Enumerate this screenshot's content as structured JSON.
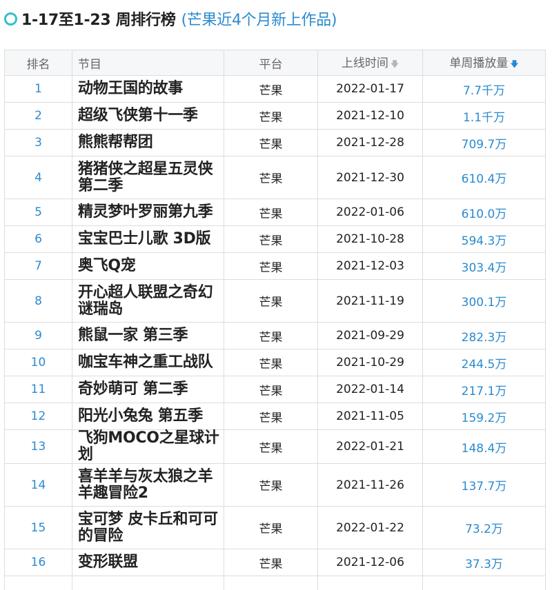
{
  "header": {
    "title": "1-17至1-23 周排行榜",
    "subtitle": "(芒果近4个月新上作品)"
  },
  "table": {
    "columns": {
      "rank": "排名",
      "title": "节目",
      "platform": "平台",
      "release": "上线时间",
      "plays": "单周播放量"
    },
    "sort_icons": {
      "release": "arrow-down-gray-icon",
      "plays": "arrow-down-blue-icon"
    },
    "rows": [
      {
        "rank": "1",
        "title": "动物王国的故事",
        "platform": "芒果",
        "release": "2022-01-17",
        "plays": "7.7千万"
      },
      {
        "rank": "2",
        "title": "超级飞侠第十一季",
        "platform": "芒果",
        "release": "2021-12-10",
        "plays": "1.1千万"
      },
      {
        "rank": "3",
        "title": "熊熊帮帮团",
        "platform": "芒果",
        "release": "2021-12-28",
        "plays": "709.7万"
      },
      {
        "rank": "4",
        "title": "猪猪侠之超星五灵侠 第二季",
        "platform": "芒果",
        "release": "2021-12-30",
        "plays": "610.4万"
      },
      {
        "rank": "5",
        "title": "精灵梦叶罗丽第九季",
        "platform": "芒果",
        "release": "2022-01-06",
        "plays": "610.0万"
      },
      {
        "rank": "6",
        "title": "宝宝巴士儿歌 3D版",
        "platform": "芒果",
        "release": "2021-10-28",
        "plays": "594.3万"
      },
      {
        "rank": "7",
        "title": "奥飞Q宠",
        "platform": "芒果",
        "release": "2021-12-03",
        "plays": "303.4万"
      },
      {
        "rank": "8",
        "title": "开心超人联盟之奇幻谜瑞岛",
        "platform": "芒果",
        "release": "2021-11-19",
        "plays": "300.1万"
      },
      {
        "rank": "9",
        "title": "熊鼠一家 第三季",
        "platform": "芒果",
        "release": "2021-09-29",
        "plays": "282.3万"
      },
      {
        "rank": "10",
        "title": "咖宝车神之重工战队",
        "platform": "芒果",
        "release": "2021-10-29",
        "plays": "244.5万"
      },
      {
        "rank": "11",
        "title": "奇妙萌可 第二季",
        "platform": "芒果",
        "release": "2022-01-14",
        "plays": "217.1万"
      },
      {
        "rank": "12",
        "title": "阳光小兔兔 第五季",
        "platform": "芒果",
        "release": "2021-11-05",
        "plays": "159.2万"
      },
      {
        "rank": "13",
        "title": "飞狗MOCO之星球计划",
        "platform": "芒果",
        "release": "2022-01-21",
        "plays": "148.4万"
      },
      {
        "rank": "14",
        "title": "喜羊羊与灰太狼之羊羊趣冒险2",
        "platform": "芒果",
        "release": "2021-11-26",
        "plays": "137.7万"
      },
      {
        "rank": "15",
        "title": "宝可梦 皮卡丘和可可的冒险",
        "platform": "芒果",
        "release": "2022-01-22",
        "plays": "73.2万"
      },
      {
        "rank": "16",
        "title": "变形联盟",
        "platform": "芒果",
        "release": "2021-12-06",
        "plays": "37.3万"
      }
    ]
  }
}
